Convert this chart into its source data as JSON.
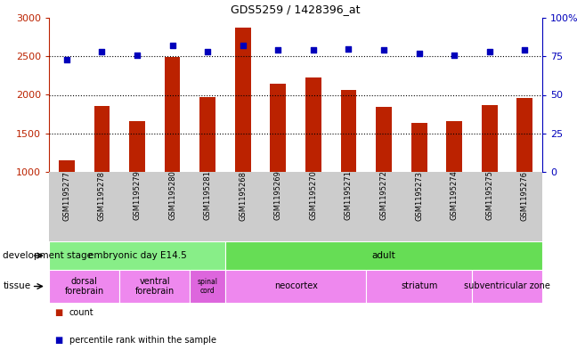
{
  "title": "GDS5259 / 1428396_at",
  "samples": [
    "GSM1195277",
    "GSM1195278",
    "GSM1195279",
    "GSM1195280",
    "GSM1195281",
    "GSM1195268",
    "GSM1195269",
    "GSM1195270",
    "GSM1195271",
    "GSM1195272",
    "GSM1195273",
    "GSM1195274",
    "GSM1195275",
    "GSM1195276"
  ],
  "counts": [
    1155,
    1860,
    1660,
    2490,
    1975,
    2870,
    2150,
    2220,
    2060,
    1840,
    1640,
    1660,
    1870,
    1960
  ],
  "percentiles": [
    73,
    78,
    76,
    82,
    78,
    82,
    79,
    79,
    80,
    79,
    77,
    76,
    78,
    79
  ],
  "ymin": 1000,
  "ymax": 3000,
  "yticks": [
    1000,
    1500,
    2000,
    2500,
    3000
  ],
  "y2min": 0,
  "y2max": 100,
  "y2ticks": [
    0,
    25,
    50,
    75,
    100
  ],
  "bar_color": "#bb2200",
  "dot_color": "#0000bb",
  "bar_width": 0.45,
  "development_stage_groups": [
    {
      "label": "embryonic day E14.5",
      "start": 0,
      "end": 5,
      "color": "#88ee88"
    },
    {
      "label": "adult",
      "start": 5,
      "end": 14,
      "color": "#66dd55"
    }
  ],
  "tissue_groups": [
    {
      "label": "dorsal\nforebrain",
      "start": 0,
      "end": 2,
      "color": "#ee88ee"
    },
    {
      "label": "ventral\nforebrain",
      "start": 2,
      "end": 4,
      "color": "#ee88ee"
    },
    {
      "label": "spinal\ncord",
      "start": 4,
      "end": 5,
      "color": "#dd66dd"
    },
    {
      "label": "neocortex",
      "start": 5,
      "end": 9,
      "color": "#ee88ee"
    },
    {
      "label": "striatum",
      "start": 9,
      "end": 12,
      "color": "#ee88ee"
    },
    {
      "label": "subventricular zone",
      "start": 12,
      "end": 14,
      "color": "#ee88ee"
    }
  ],
  "xtick_bg": "#cccccc",
  "plot_bg": "#ffffff",
  "grid_color": "#000000",
  "fig_bg": "#ffffff"
}
